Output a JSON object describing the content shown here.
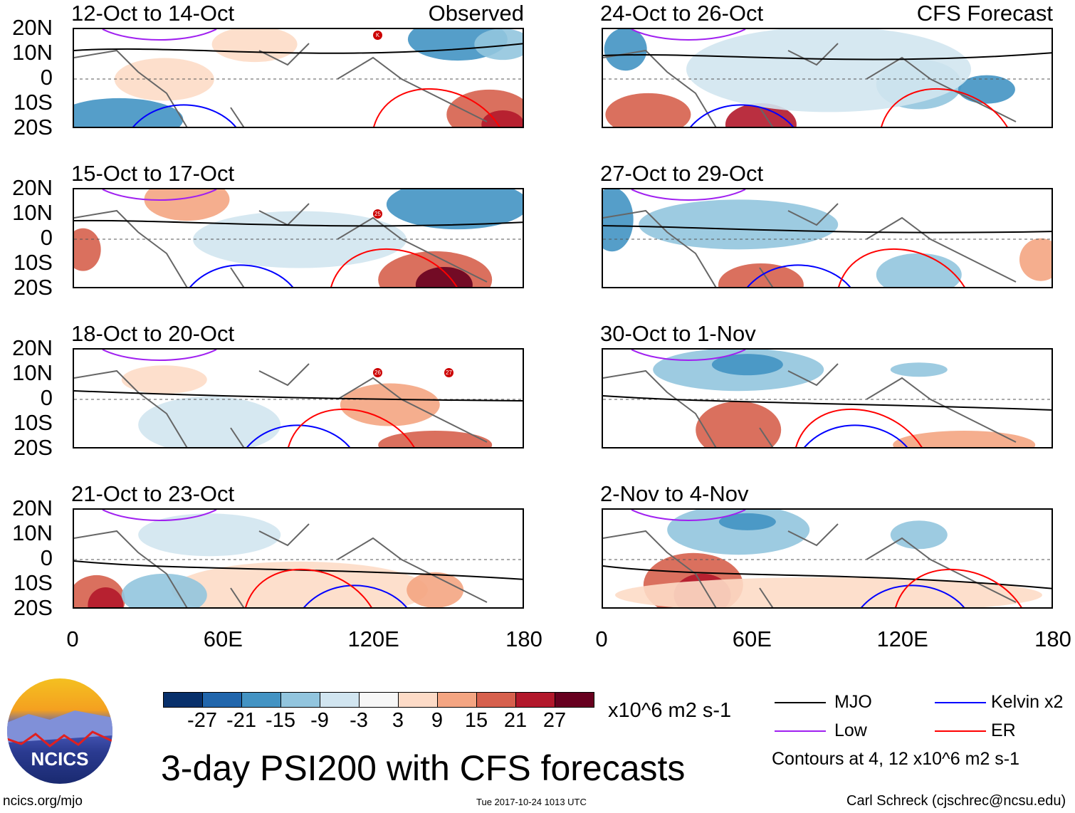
{
  "panels": [
    {
      "title": "12-Oct to 14-Oct",
      "label": "Observed",
      "storms": [
        "K"
      ]
    },
    {
      "title": "24-Oct to 26-Oct",
      "label": "CFS Forecast",
      "storms": []
    },
    {
      "title": "15-Oct to 17-Oct",
      "label": "",
      "storms": [
        "25"
      ]
    },
    {
      "title": "27-Oct to 29-Oct",
      "label": "",
      "storms": []
    },
    {
      "title": "18-Oct to 20-Oct",
      "label": "",
      "storms": [
        "26",
        "27"
      ]
    },
    {
      "title": "30-Oct to 1-Nov",
      "label": "",
      "storms": []
    },
    {
      "title": "21-Oct to 23-Oct",
      "label": "",
      "storms": []
    },
    {
      "title": "2-Nov to 4-Nov",
      "label": "",
      "storms": []
    }
  ],
  "lat_ticks": [
    "20N",
    "10N",
    "0",
    "10S",
    "20S"
  ],
  "lon_ticks": [
    "0",
    "60E",
    "120E",
    "180"
  ],
  "colorbar": {
    "labels": [
      "-27",
      "-21",
      "-15",
      "-9",
      "-3",
      "3",
      "9",
      "15",
      "21",
      "27"
    ],
    "colors": [
      "#08306b",
      "#2166ac",
      "#4393c3",
      "#92c5de",
      "#d1e5f0",
      "#f7f7f7",
      "#fddbc7",
      "#f4a582",
      "#d6604d",
      "#b2182b",
      "#67001f"
    ],
    "units": "x10^6 m2 s-1"
  },
  "legend": {
    "items": [
      {
        "label": "MJO",
        "color": "#000000"
      },
      {
        "label": "Kelvin x2",
        "color": "#0000ff"
      },
      {
        "label": "Low",
        "color": "#a020f0"
      },
      {
        "label": "ER",
        "color": "#ff0000"
      }
    ],
    "contours": "Contours at 4, 12 x10^6 m2 s-1"
  },
  "title": "3-day PSI200 with CFS forecasts",
  "logo": "NCICS",
  "url": "ncics.org/mjo",
  "timestamp": "Tue 2017-10-24 1013 UTC",
  "author": "Carl Schreck (cjschrec@ncsu.edu)"
}
